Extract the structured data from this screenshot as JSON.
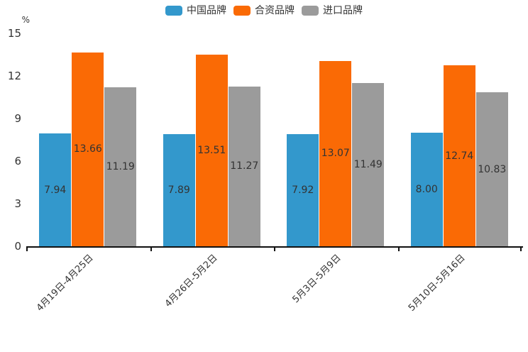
{
  "chart_data": {
    "type": "bar",
    "title": "",
    "ylabel": "%",
    "xlabel": "",
    "ylim": [
      0,
      15
    ],
    "yticks": [
      0,
      3,
      6,
      9,
      12,
      15
    ],
    "grid": false,
    "legend_position": "top",
    "value_label_position": "inside-center",
    "axis_color": "#111111",
    "text_color": "#333333",
    "categories": [
      "4月19日-4月25日",
      "4月26日-5月2日",
      "5月3日-5月9日",
      "5月10日-5月16日"
    ],
    "series": [
      {
        "key": "china-brand",
        "name": "中国品牌",
        "color": "#3398CC",
        "values": [
          7.94,
          7.89,
          7.92,
          8.0
        ]
      },
      {
        "key": "joint-venture-brand",
        "name": "合资品牌",
        "color": "#FA6A05",
        "values": [
          13.66,
          13.51,
          13.07,
          12.74
        ]
      },
      {
        "key": "import-brand",
        "name": "进口品牌",
        "color": "#9B9B9B",
        "values": [
          11.19,
          11.27,
          11.49,
          10.83
        ]
      }
    ]
  }
}
